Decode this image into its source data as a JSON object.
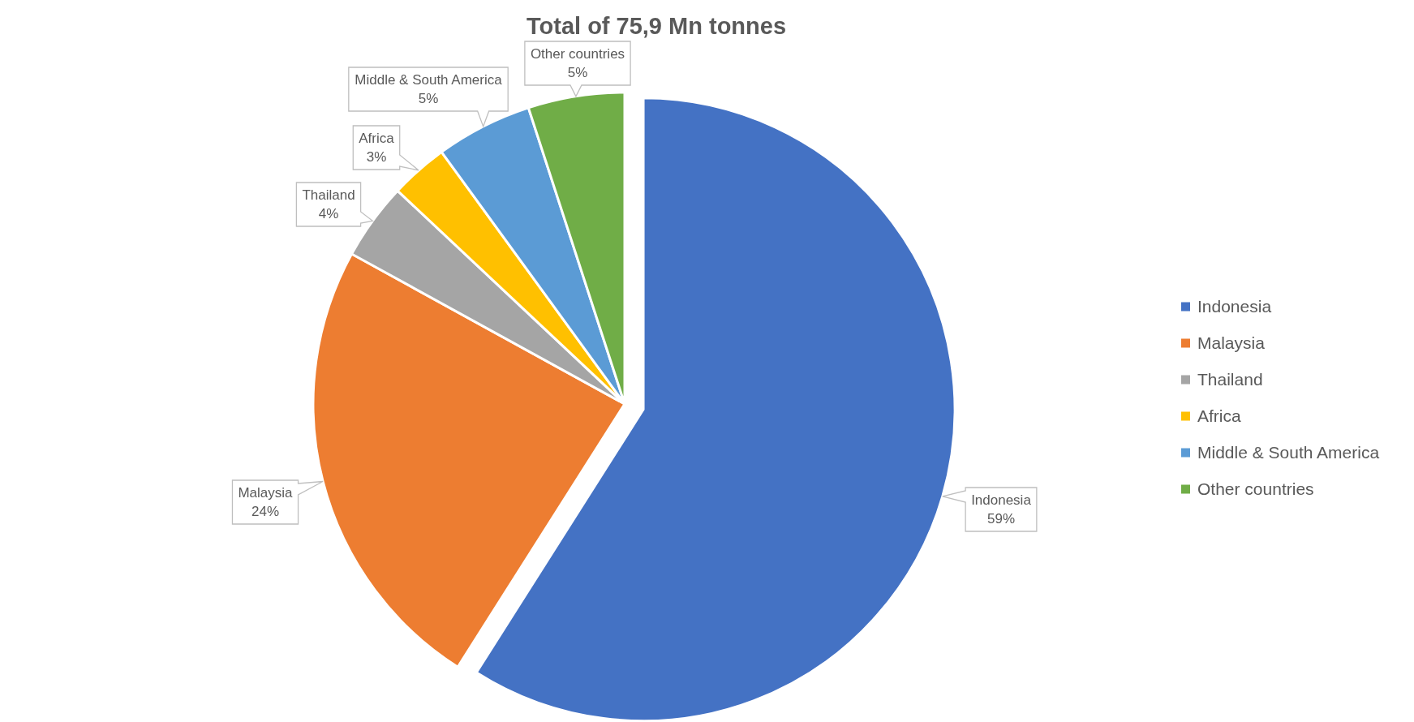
{
  "chart_data": {
    "type": "pie",
    "title": "Total of 75,9 Mn tonnes",
    "categories": [
      "Indonesia",
      "Malaysia",
      "Thailand",
      "Africa",
      "Middle & South America",
      "Other countries"
    ],
    "values": [
      59,
      24,
      4,
      3,
      5,
      5
    ],
    "colors": [
      "#4472c4",
      "#ed7d31",
      "#a5a5a5",
      "#ffc000",
      "#5b9bd5",
      "#70ad47"
    ],
    "value_labels": [
      "59%",
      "24%",
      "4%",
      "3%",
      "5%",
      "5%"
    ],
    "legend": "right"
  }
}
